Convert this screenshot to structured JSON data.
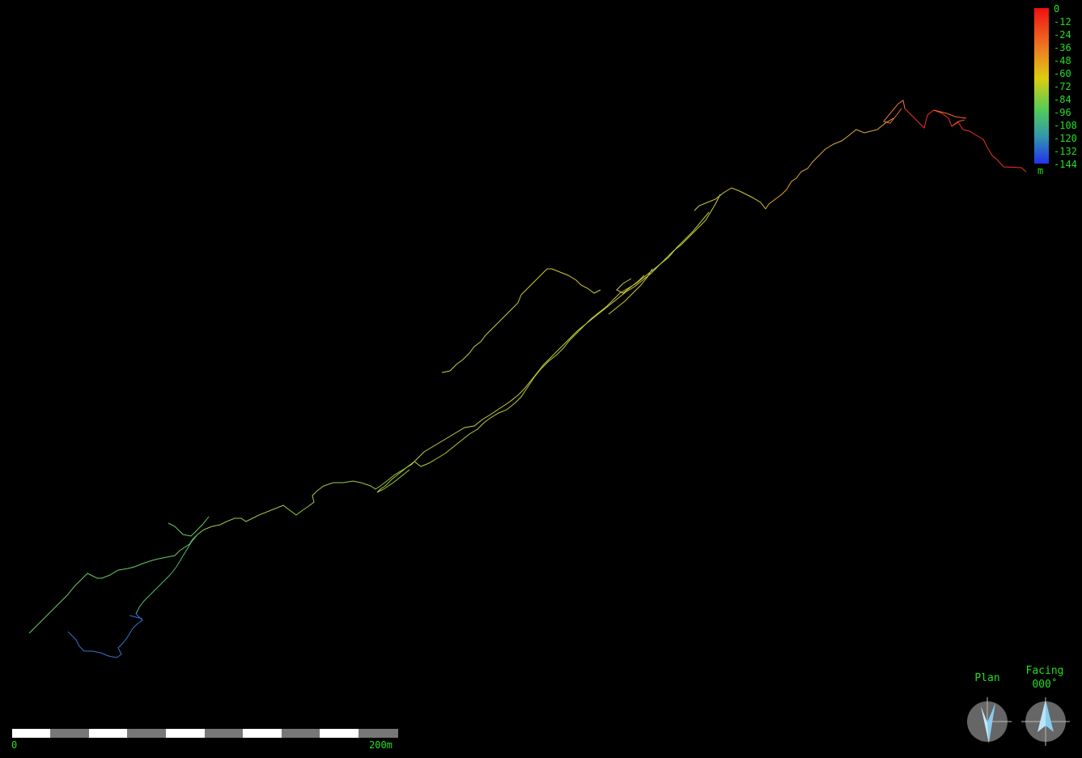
{
  "depth_legend": {
    "ticks": [
      "0",
      "-12",
      "-24",
      "-36",
      "-48",
      "-60",
      "-72",
      "-84",
      "-96",
      "-108",
      "-120",
      "-132",
      "-144"
    ],
    "unit": "m",
    "gradient_colors": [
      "#ee2222",
      "#ee6633",
      "#dd9922",
      "#ddcc22",
      "#88cc44",
      "#33aa88",
      "#3366dd",
      "#2233ee"
    ]
  },
  "scale_bar": {
    "start_label": "0",
    "end_label": "200m"
  },
  "compass": {
    "plan_label": "Plan",
    "facing_label": "Facing",
    "facing_value": "000˚"
  },
  "colors": {
    "background": "#000000",
    "text": "#22dd22",
    "compass_disc": "#666666",
    "compass_needle": "#88ccee"
  }
}
